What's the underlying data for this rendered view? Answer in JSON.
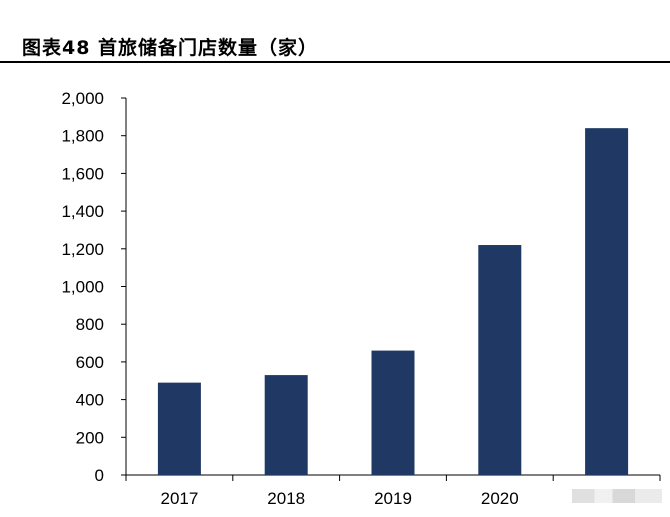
{
  "header": {
    "title": "图表48 首旅储备门店数量（家）"
  },
  "chart_data": {
    "type": "bar",
    "title": "图表48 首旅储备门店数量（家）",
    "xlabel": "",
    "ylabel": "",
    "categories": [
      "2017",
      "2018",
      "2019",
      "2020",
      ""
    ],
    "values": [
      490,
      530,
      660,
      1220,
      1840
    ],
    "ylim": [
      0,
      2000
    ],
    "yticks": [
      0,
      200,
      400,
      600,
      800,
      1000,
      1200,
      1400,
      1600,
      1800,
      2000
    ],
    "ytick_labels": [
      "0",
      "200",
      "400",
      "600",
      "800",
      "1,000",
      "1,200",
      "1,400",
      "1,600",
      "1,800",
      "2,000"
    ],
    "grid": false,
    "legend": "none",
    "bar_color": "#1f3864"
  }
}
